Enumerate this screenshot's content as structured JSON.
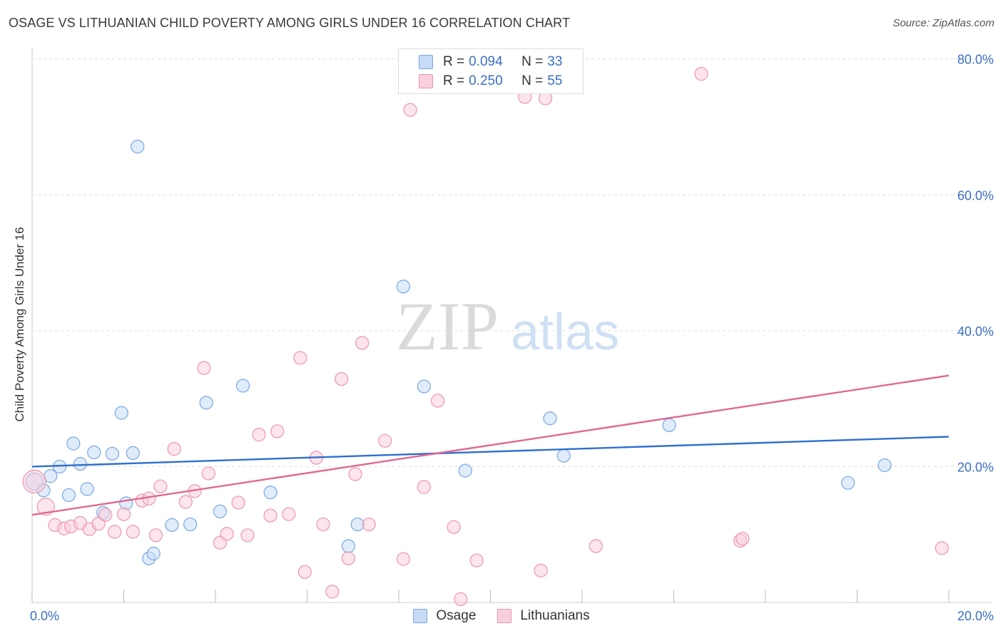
{
  "title": "OSAGE VS LITHUANIAN CHILD POVERTY AMONG GIRLS UNDER 16 CORRELATION CHART",
  "source": "Source: ZipAtlas.com",
  "watermark": {
    "zip": "ZIP",
    "atlas": "atlas"
  },
  "legend": {
    "rows": [
      {
        "r_label": "R =",
        "r_value": "0.094",
        "n_label": "N =",
        "n_value": "33",
        "color": "#a8c8f0",
        "border": "#7aa7e0"
      },
      {
        "r_label": "R =",
        "r_value": "0.250",
        "n_label": "N =",
        "n_value": "55",
        "color": "#f8bfd0",
        "border": "#ec95b0"
      }
    ]
  },
  "bottom_legend": [
    {
      "label": "Osage",
      "color": "#a8c8f0",
      "border": "#7aa7e0"
    },
    {
      "label": "Lithuanians",
      "color": "#f8bfd0",
      "border": "#ec95b0"
    }
  ],
  "chart_data": {
    "type": "scatter",
    "title": "OSAGE VS LITHUANIAN CHILD POVERTY AMONG GIRLS UNDER 16 CORRELATION CHART",
    "xlabel": "",
    "ylabel": "Child Poverty Among Girls Under 16",
    "xlim": [
      0,
      20
    ],
    "ylim": [
      0,
      80
    ],
    "x_tick_labels": [
      {
        "value": 0,
        "label": "0.0%"
      },
      {
        "value": 20,
        "label": "20.0%"
      }
    ],
    "y_tick_labels": [
      {
        "value": 20,
        "label": "20.0%"
      },
      {
        "value": 40,
        "label": "40.0%"
      },
      {
        "value": 60,
        "label": "60.0%"
      },
      {
        "value": 80,
        "label": "80.0%"
      }
    ],
    "grid": "horizontal dashed",
    "series": [
      {
        "name": "Osage",
        "color": "#7aa7e0",
        "fill": "#c6dcf6",
        "trend": {
          "x": [
            0,
            20
          ],
          "y": [
            20.0,
            24.4
          ],
          "color": "#2f6fd0"
        },
        "points": [
          [
            0.05,
            17.8,
            12
          ],
          [
            0.25,
            16.5,
            9
          ],
          [
            0.4,
            18.6,
            9
          ],
          [
            0.6,
            20.0,
            9
          ],
          [
            0.8,
            15.8,
            9
          ],
          [
            0.9,
            23.4,
            9
          ],
          [
            1.05,
            20.4,
            9
          ],
          [
            1.2,
            16.7,
            9
          ],
          [
            1.35,
            22.1,
            9
          ],
          [
            1.55,
            13.2,
            9
          ],
          [
            1.75,
            21.9,
            9
          ],
          [
            1.95,
            27.9,
            9
          ],
          [
            2.05,
            14.6,
            9
          ],
          [
            2.2,
            22.0,
            9
          ],
          [
            2.3,
            67.1,
            9
          ],
          [
            2.55,
            6.5,
            9
          ],
          [
            2.65,
            7.2,
            9
          ],
          [
            3.05,
            11.4,
            9
          ],
          [
            3.45,
            11.5,
            9
          ],
          [
            3.8,
            29.4,
            9
          ],
          [
            4.1,
            13.4,
            9
          ],
          [
            4.6,
            31.9,
            9
          ],
          [
            5.2,
            16.2,
            9
          ],
          [
            6.9,
            8.3,
            9
          ],
          [
            7.1,
            11.5,
            9
          ],
          [
            8.1,
            46.5,
            9
          ],
          [
            8.55,
            31.8,
            9
          ],
          [
            9.45,
            19.4,
            9
          ],
          [
            11.3,
            27.1,
            9
          ],
          [
            11.6,
            21.6,
            9
          ],
          [
            13.9,
            26.1,
            9
          ],
          [
            17.8,
            17.6,
            9
          ],
          [
            18.6,
            20.2,
            9
          ]
        ]
      },
      {
        "name": "Lithuanians",
        "color": "#ec95b0",
        "fill": "#f9cfdc",
        "trend": {
          "x": [
            0,
            20
          ],
          "y": [
            12.9,
            33.4
          ],
          "color": "#e06892"
        },
        "points": [
          [
            0.05,
            17.8,
            16
          ],
          [
            0.3,
            14.1,
            12
          ],
          [
            0.5,
            11.4,
            9
          ],
          [
            0.7,
            10.9,
            9
          ],
          [
            0.85,
            11.2,
            9
          ],
          [
            1.05,
            11.7,
            9
          ],
          [
            1.25,
            10.8,
            9
          ],
          [
            1.45,
            11.6,
            9
          ],
          [
            1.6,
            12.9,
            9
          ],
          [
            1.8,
            10.4,
            9
          ],
          [
            2.0,
            13.0,
            9
          ],
          [
            2.2,
            10.4,
            9
          ],
          [
            2.4,
            15.0,
            9
          ],
          [
            2.55,
            15.3,
            9
          ],
          [
            2.7,
            9.9,
            9
          ],
          [
            2.8,
            17.1,
            9
          ],
          [
            3.1,
            22.6,
            9
          ],
          [
            3.35,
            14.8,
            9
          ],
          [
            3.55,
            16.4,
            9
          ],
          [
            3.75,
            34.5,
            9
          ],
          [
            3.85,
            19.0,
            9
          ],
          [
            4.1,
            8.8,
            9
          ],
          [
            4.25,
            10.1,
            9
          ],
          [
            4.5,
            14.7,
            9
          ],
          [
            4.7,
            9.9,
            9
          ],
          [
            4.95,
            24.7,
            9
          ],
          [
            5.2,
            12.8,
            9
          ],
          [
            5.35,
            25.2,
            9
          ],
          [
            5.6,
            13.0,
            9
          ],
          [
            5.85,
            36.0,
            9
          ],
          [
            5.95,
            4.5,
            9
          ],
          [
            6.2,
            21.3,
            9
          ],
          [
            6.35,
            11.5,
            9
          ],
          [
            6.55,
            1.6,
            9
          ],
          [
            6.75,
            32.9,
            9
          ],
          [
            6.9,
            6.5,
            9
          ],
          [
            7.05,
            18.9,
            9
          ],
          [
            7.2,
            38.2,
            9
          ],
          [
            7.35,
            11.5,
            9
          ],
          [
            7.7,
            23.8,
            9
          ],
          [
            8.1,
            6.4,
            9
          ],
          [
            8.25,
            72.5,
            9
          ],
          [
            8.55,
            17.0,
            9
          ],
          [
            8.85,
            29.7,
            9
          ],
          [
            9.2,
            11.1,
            9
          ],
          [
            9.35,
            0.5,
            9
          ],
          [
            9.7,
            6.2,
            9
          ],
          [
            10.75,
            74.4,
            9
          ],
          [
            11.1,
            4.7,
            9
          ],
          [
            11.2,
            74.2,
            9
          ],
          [
            12.3,
            8.3,
            9
          ],
          [
            14.6,
            77.8,
            9
          ],
          [
            15.45,
            9.1,
            9
          ],
          [
            15.5,
            9.4,
            9
          ],
          [
            19.85,
            8.0,
            9
          ]
        ]
      }
    ]
  }
}
